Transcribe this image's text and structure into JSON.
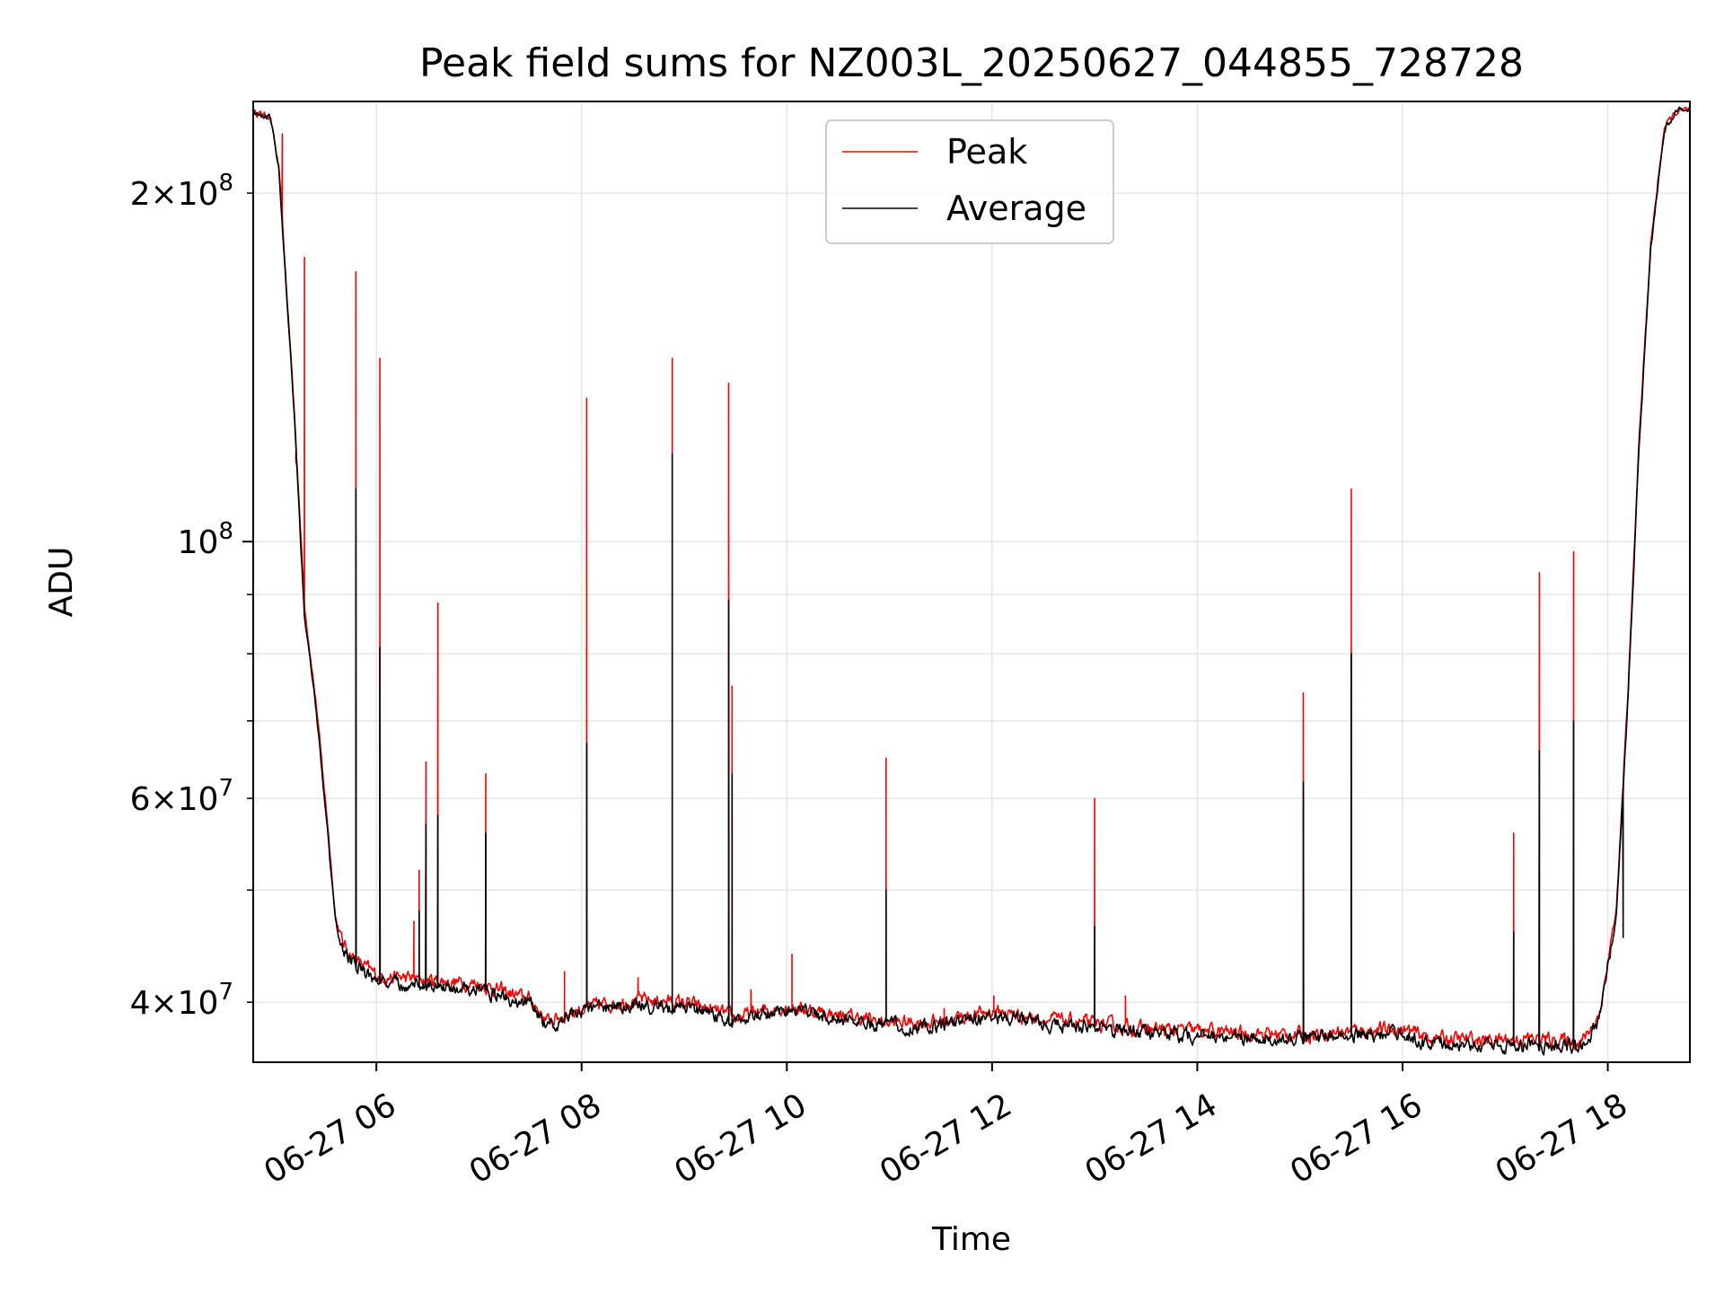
{
  "chart_data": {
    "type": "line",
    "title": "Peak field sums for NZ003L_20250627_044855_728728",
    "xlabel": "Time",
    "ylabel": "ADU",
    "yscale": "log",
    "ylim": [
      35500000,
      240000000
    ],
    "xlim": [
      "2025-06-27T04:48",
      "2025-06-27T18:48"
    ],
    "grid": true,
    "legend_position": "top-center",
    "xticks": [
      {
        "t": "2025-06-27T06:00",
        "label": "06-27 06"
      },
      {
        "t": "2025-06-27T08:00",
        "label": "06-27 08"
      },
      {
        "t": "2025-06-27T10:00",
        "label": "06-27 10"
      },
      {
        "t": "2025-06-27T12:00",
        "label": "06-27 12"
      },
      {
        "t": "2025-06-27T14:00",
        "label": "06-27 14"
      },
      {
        "t": "2025-06-27T16:00",
        "label": "06-27 16"
      },
      {
        "t": "2025-06-27T18:00",
        "label": "06-27 18"
      }
    ],
    "yticks_major": [
      {
        "v": 100000000,
        "base": "10",
        "exp": "8"
      }
    ],
    "yticks_minor": [
      {
        "v": 40000000,
        "mant": "4",
        "exp": "7",
        "labeled": true
      },
      {
        "v": 50000000,
        "labeled": false
      },
      {
        "v": 60000000,
        "mant": "6",
        "exp": "7",
        "labeled": true
      },
      {
        "v": 70000000,
        "labeled": false
      },
      {
        "v": 80000000,
        "labeled": false
      },
      {
        "v": 90000000,
        "labeled": false
      },
      {
        "v": 200000000,
        "mant": "2",
        "exp": "8",
        "labeled": true
      }
    ],
    "series": [
      {
        "name": "Peak",
        "color": "#ff0000",
        "baseline": [
          [
            "2025-06-27T04:48",
            235000000
          ],
          [
            "2025-06-27T04:58",
            233000000
          ],
          [
            "2025-06-27T05:03",
            210000000
          ],
          [
            "2025-06-27T05:12",
            130000000
          ],
          [
            "2025-06-27T05:18",
            88000000
          ],
          [
            "2025-06-27T05:25",
            72000000
          ],
          [
            "2025-06-27T05:32",
            56000000
          ],
          [
            "2025-06-27T05:36",
            47500000
          ],
          [
            "2025-06-27T05:40",
            45000000
          ],
          [
            "2025-06-27T05:48",
            43500000
          ],
          [
            "2025-06-27T06:00",
            42200000
          ],
          [
            "2025-06-27T06:30",
            41800000
          ],
          [
            "2025-06-27T07:00",
            41500000
          ],
          [
            "2025-06-27T07:30",
            40200000
          ],
          [
            "2025-06-27T07:40",
            38500000
          ],
          [
            "2025-06-27T08:00",
            39500000
          ],
          [
            "2025-06-27T08:30",
            40200000
          ],
          [
            "2025-06-27T09:00",
            40000000
          ],
          [
            "2025-06-27T09:30",
            38800000
          ],
          [
            "2025-06-27T10:00",
            39700000
          ],
          [
            "2025-06-27T10:30",
            39000000
          ],
          [
            "2025-06-27T11:00",
            38400000
          ],
          [
            "2025-06-27T11:30",
            38500000
          ],
          [
            "2025-06-27T12:00",
            39300000
          ],
          [
            "2025-06-27T12:30",
            38700000
          ],
          [
            "2025-06-27T13:00",
            38300000
          ],
          [
            "2025-06-27T13:30",
            37900000
          ],
          [
            "2025-06-27T14:00",
            37800000
          ],
          [
            "2025-06-27T14:30",
            37600000
          ],
          [
            "2025-06-27T15:00",
            37500000
          ],
          [
            "2025-06-27T15:30",
            37800000
          ],
          [
            "2025-06-27T16:00",
            37900000
          ],
          [
            "2025-06-27T16:15",
            37300000
          ],
          [
            "2025-06-27T16:45",
            37100000
          ],
          [
            "2025-06-27T17:15",
            37200000
          ],
          [
            "2025-06-27T17:45",
            37000000
          ],
          [
            "2025-06-27T17:55",
            39000000
          ],
          [
            "2025-06-27T18:05",
            48000000
          ],
          [
            "2025-06-27T18:12",
            75000000
          ],
          [
            "2025-06-27T18:18",
            120000000
          ],
          [
            "2025-06-27T18:25",
            180000000
          ],
          [
            "2025-06-27T18:33",
            228000000
          ],
          [
            "2025-06-27T18:40",
            235000000
          ],
          [
            "2025-06-27T18:48",
            236000000
          ]
        ],
        "spikes": [
          [
            "2025-06-27T05:05",
            225000000
          ],
          [
            "2025-06-27T05:13",
            117000000
          ],
          [
            "2025-06-27T05:18",
            176000000
          ],
          [
            "2025-06-27T05:48",
            171000000
          ],
          [
            "2025-06-27T06:02",
            144000000
          ],
          [
            "2025-06-27T06:22",
            47000000
          ],
          [
            "2025-06-27T06:25",
            52000000
          ],
          [
            "2025-06-27T06:29",
            64500000
          ],
          [
            "2025-06-27T06:36",
            88500000
          ],
          [
            "2025-06-27T07:04",
            63000000
          ],
          [
            "2025-06-27T07:50",
            42500000
          ],
          [
            "2025-06-27T08:03",
            133000000
          ],
          [
            "2025-06-27T08:33",
            42000000
          ],
          [
            "2025-06-27T08:53",
            144000000
          ],
          [
            "2025-06-27T09:26",
            137000000
          ],
          [
            "2025-06-27T09:28",
            75000000
          ],
          [
            "2025-06-27T09:39",
            41000000
          ],
          [
            "2025-06-27T10:03",
            44000000
          ],
          [
            "2025-06-27T10:58",
            65000000
          ],
          [
            "2025-06-27T11:32",
            39500000
          ],
          [
            "2025-06-27T12:01",
            40500000
          ],
          [
            "2025-06-27T13:00",
            60000000
          ],
          [
            "2025-06-27T13:18",
            40500000
          ],
          [
            "2025-06-27T15:02",
            74000000
          ],
          [
            "2025-06-27T15:30",
            111000000
          ],
          [
            "2025-06-27T17:05",
            56000000
          ],
          [
            "2025-06-27T17:20",
            94000000
          ],
          [
            "2025-06-27T17:40",
            98000000
          ],
          [
            "2025-06-27T18:09",
            51000000
          ]
        ]
      },
      {
        "name": "Average",
        "color": "#000000",
        "baseline": [
          [
            "2025-06-27T04:48",
            235000000
          ],
          [
            "2025-06-27T04:58",
            233000000
          ],
          [
            "2025-06-27T05:03",
            210000000
          ],
          [
            "2025-06-27T05:12",
            128000000
          ],
          [
            "2025-06-27T05:18",
            86000000
          ],
          [
            "2025-06-27T05:25",
            71000000
          ],
          [
            "2025-06-27T05:32",
            55000000
          ],
          [
            "2025-06-27T05:36",
            47000000
          ],
          [
            "2025-06-27T05:40",
            44500000
          ],
          [
            "2025-06-27T05:48",
            43000000
          ],
          [
            "2025-06-27T06:00",
            41800000
          ],
          [
            "2025-06-27T06:30",
            41300000
          ],
          [
            "2025-06-27T07:00",
            41000000
          ],
          [
            "2025-06-27T07:30",
            39800000
          ],
          [
            "2025-06-27T07:40",
            38200000
          ],
          [
            "2025-06-27T08:00",
            39200000
          ],
          [
            "2025-06-27T08:30",
            39800000
          ],
          [
            "2025-06-27T09:00",
            39600000
          ],
          [
            "2025-06-27T09:30",
            38500000
          ],
          [
            "2025-06-27T10:00",
            39400000
          ],
          [
            "2025-06-27T10:30",
            38700000
          ],
          [
            "2025-06-27T11:00",
            38100000
          ],
          [
            "2025-06-27T11:30",
            38200000
          ],
          [
            "2025-06-27T12:00",
            39000000
          ],
          [
            "2025-06-27T12:30",
            38400000
          ],
          [
            "2025-06-27T13:00",
            38000000
          ],
          [
            "2025-06-27T13:30",
            37600000
          ],
          [
            "2025-06-27T14:00",
            37500000
          ],
          [
            "2025-06-27T14:30",
            37300000
          ],
          [
            "2025-06-27T15:00",
            37200000
          ],
          [
            "2025-06-27T15:30",
            37500000
          ],
          [
            "2025-06-27T16:00",
            37600000
          ],
          [
            "2025-06-27T16:15",
            36900000
          ],
          [
            "2025-06-27T16:45",
            36700000
          ],
          [
            "2025-06-27T17:15",
            36800000
          ],
          [
            "2025-06-27T17:45",
            36600000
          ],
          [
            "2025-06-27T17:55",
            38600000
          ],
          [
            "2025-06-27T18:05",
            47500000
          ],
          [
            "2025-06-27T18:12",
            74000000
          ],
          [
            "2025-06-27T18:18",
            118000000
          ],
          [
            "2025-06-27T18:25",
            178000000
          ],
          [
            "2025-06-27T18:33",
            227000000
          ],
          [
            "2025-06-27T18:40",
            235000000
          ],
          [
            "2025-06-27T18:48",
            236000000
          ]
        ],
        "spikes": [
          [
            "2025-06-27T05:13",
            118000000
          ],
          [
            "2025-06-27T05:48",
            111000000
          ],
          [
            "2025-06-27T06:02",
            81000000
          ],
          [
            "2025-06-27T06:25",
            48000000
          ],
          [
            "2025-06-27T06:29",
            57000000
          ],
          [
            "2025-06-27T06:36",
            58000000
          ],
          [
            "2025-06-27T07:04",
            56000000
          ],
          [
            "2025-06-27T08:03",
            67000000
          ],
          [
            "2025-06-27T08:53",
            119000000
          ],
          [
            "2025-06-27T09:26",
            89000000
          ],
          [
            "2025-06-27T09:28",
            63000000
          ],
          [
            "2025-06-27T10:58",
            50000000
          ],
          [
            "2025-06-27T13:00",
            46500000
          ],
          [
            "2025-06-27T15:02",
            62000000
          ],
          [
            "2025-06-27T15:30",
            80000000
          ],
          [
            "2025-06-27T17:05",
            46000000
          ],
          [
            "2025-06-27T17:20",
            66000000
          ],
          [
            "2025-06-27T17:40",
            70000000
          ],
          [
            "2025-06-27T18:09",
            45500000
          ]
        ]
      }
    ]
  }
}
